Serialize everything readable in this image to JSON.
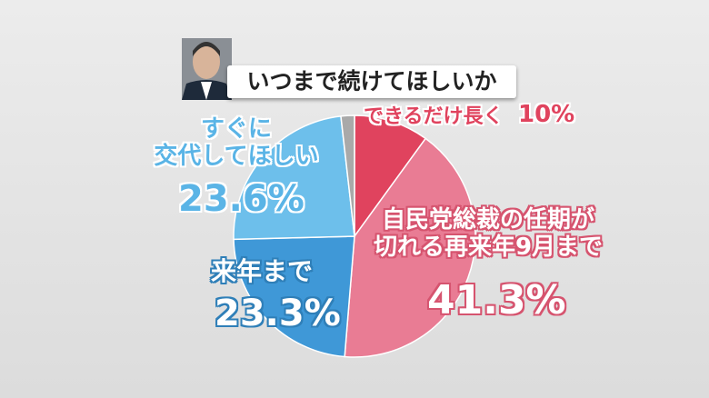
{
  "chart_data": {
    "type": "pie",
    "title": "いつまで続けてほしいか",
    "categories": [
      "できるだけ長く",
      "自民党総裁の任期が\n切れる再来年9月まで",
      "来年まで",
      "すぐに\n交代してほしい",
      null
    ],
    "values": [
      10,
      41.3,
      23.3,
      23.6,
      1.8
    ],
    "value_labels": [
      "10%",
      "41.3%",
      "23.3%",
      "23.6%",
      null
    ],
    "colors": [
      "#e0435e",
      "#e97c94",
      "#3f98d7",
      "#6dbfeb",
      "#a9a9a9"
    ]
  }
}
